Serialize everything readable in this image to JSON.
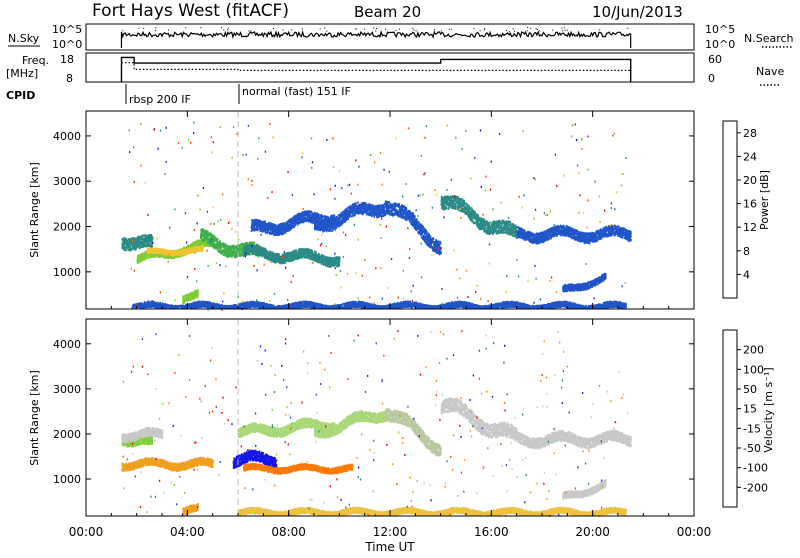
{
  "header": {
    "station": "Fort Hays West (fitACF)",
    "beam": "Beam 20",
    "date": "10/Jun/2013"
  },
  "params": {
    "nsky_label": "N.Sky",
    "nsky_top": "10^5",
    "nsky_bottom": "10^0",
    "nsky_right_top": "10^5",
    "nsky_right_bottom": "10^0",
    "nsearch_label": "N.Search",
    "freq_label": "Freq.",
    "freq_unit": "[MHz]",
    "freq_top": "18",
    "freq_bottom": "8",
    "nave_top": "60",
    "nave_bottom": "0",
    "nave_label": "Nave",
    "cpid_label": "CPID",
    "cpid_segments": [
      {
        "label": "rbsp 200 IF",
        "start_hr": 1.4
      },
      {
        "label": "normal (fast) 151 IF",
        "start_hr": 6.0
      }
    ],
    "freq_steps": [
      {
        "t0": 1.4,
        "t1": 1.9,
        "mhz": 16.5
      },
      {
        "t0": 1.9,
        "t1": 6.0,
        "mhz": 14.5
      },
      {
        "t0": 6.0,
        "t1": 14.0,
        "mhz": 14.5
      },
      {
        "t0": 14.0,
        "t1": 21.5,
        "mhz": 15.8
      }
    ],
    "nave_steps": [
      {
        "t0": 1.4,
        "t1": 1.9,
        "nave": 40
      },
      {
        "t0": 1.9,
        "t1": 6.0,
        "nave": 26
      },
      {
        "t0": 6.0,
        "t1": 21.5,
        "nave": 24
      }
    ]
  },
  "chart_data": [
    {
      "type": "heatmap",
      "name": "Power",
      "ylabel": "Slant Range [km]",
      "yticks": [
        "1000",
        "2000",
        "3000",
        "4000"
      ],
      "ylim": [
        180,
        4550
      ],
      "xlim": [
        0,
        24
      ],
      "colorbar_label": "Power [dB]",
      "colorbar_ticks": [
        "4",
        "8",
        "12",
        "16",
        "20",
        "24",
        "28"
      ],
      "colorbar_colors": [
        "#1515e6",
        "#1f55c8",
        "#2b8a86",
        "#3fae4c",
        "#7fcc36",
        "#f0c430",
        "#ff9800",
        "#ff6a00",
        "#ff3a00",
        "#e60000"
      ],
      "bands": [
        {
          "t0": 1.4,
          "t1": 2.6,
          "r0": 1750,
          "r1": 1600,
          "w": 260,
          "c": "#2b8a86"
        },
        {
          "t0": 2.0,
          "t1": 5.0,
          "r0": 1300,
          "r1": 1650,
          "w": 160,
          "c": "#7fcc36"
        },
        {
          "t0": 2.4,
          "t1": 4.6,
          "r0": 1450,
          "r1": 1500,
          "w": 100,
          "c": "#f0c430"
        },
        {
          "t0": 4.5,
          "t1": 6.8,
          "r0": 1750,
          "r1": 1400,
          "w": 260,
          "c": "#3fae4c"
        },
        {
          "t0": 6.2,
          "t1": 10.0,
          "r0": 1450,
          "r1": 1300,
          "w": 200,
          "c": "#2b8a86"
        },
        {
          "t0": 6.5,
          "t1": 9.8,
          "r0": 1950,
          "r1": 2250,
          "w": 240,
          "c": "#1f55c8"
        },
        {
          "t0": 9.0,
          "t1": 11.8,
          "r0": 2050,
          "r1": 2500,
          "w": 260,
          "c": "#1f55c8"
        },
        {
          "t0": 11.8,
          "t1": 14.0,
          "r0": 2550,
          "r1": 1600,
          "w": 280,
          "c": "#1f55c8"
        },
        {
          "t0": 14.0,
          "t1": 17.0,
          "r0": 2600,
          "r1": 1800,
          "w": 280,
          "c": "#2b8a86"
        },
        {
          "t0": 17.0,
          "t1": 21.5,
          "r0": 1850,
          "r1": 1850,
          "w": 220,
          "c": "#1f55c8"
        },
        {
          "t0": 18.8,
          "t1": 20.5,
          "r0": 600,
          "r1": 900,
          "w": 140,
          "c": "#1f55c8"
        },
        {
          "t0": 3.8,
          "t1": 4.4,
          "r0": 450,
          "r1": 500,
          "w": 150,
          "c": "#7fcc36"
        },
        {
          "t0": 1.8,
          "t1": 21.3,
          "r0": 260,
          "r1": 260,
          "w": 120,
          "c": "#1f55c8"
        }
      ]
    },
    {
      "type": "heatmap",
      "name": "Velocity",
      "ylabel": "Slant Range [km]",
      "yticks": [
        "1000",
        "2000",
        "3000",
        "4000"
      ],
      "ylim": [
        180,
        4550
      ],
      "xlim": [
        0,
        24
      ],
      "xlabel": "Time UT",
      "xticks": [
        "00:00",
        "04:00",
        "08:00",
        "12:00",
        "16:00",
        "20:00",
        "00:00"
      ],
      "colorbar_label": "Velocity [m s⁻¹]",
      "colorbar_ticks": [
        "200",
        "100",
        "50",
        "15",
        "-15",
        "-50",
        "-100",
        "-200"
      ],
      "colorbar_colors": [
        "#1515e6",
        "#2a50b8",
        "#2e8a4a",
        "#7fd13a",
        "#c8c8c8",
        "#c8c8c8",
        "#f0a020",
        "#ff7a00",
        "#ff4000",
        "#e60000"
      ],
      "bands": [
        {
          "t0": 1.4,
          "t1": 2.6,
          "r0": 1950,
          "r1": 1800,
          "w": 200,
          "c": "#7fd13a"
        },
        {
          "t0": 1.4,
          "t1": 5.0,
          "r0": 1350,
          "r1": 1350,
          "w": 160,
          "c": "#f0a020"
        },
        {
          "t0": 1.4,
          "t1": 3.0,
          "r0": 2000,
          "r1": 2000,
          "w": 180,
          "c": "#c8c8c8"
        },
        {
          "t0": 5.8,
          "t1": 7.5,
          "r0": 1450,
          "r1": 1450,
          "w": 230,
          "c": "#1515e6"
        },
        {
          "t0": 6.2,
          "t1": 10.5,
          "r0": 1250,
          "r1": 1250,
          "w": 120,
          "c": "#ff7a00"
        },
        {
          "t0": 6.0,
          "t1": 9.8,
          "r0": 2050,
          "r1": 2250,
          "w": 200,
          "c": "#a8d878"
        },
        {
          "t0": 9.0,
          "t1": 11.8,
          "r0": 2050,
          "r1": 2500,
          "w": 220,
          "c": "#a8d878"
        },
        {
          "t0": 11.8,
          "t1": 14.0,
          "r0": 2550,
          "r1": 1700,
          "w": 260,
          "c": "#b8c8a0"
        },
        {
          "t0": 14.0,
          "t1": 17.0,
          "r0": 2700,
          "r1": 1900,
          "w": 300,
          "c": "#c8c8c8"
        },
        {
          "t0": 17.0,
          "t1": 21.5,
          "r0": 1900,
          "r1": 1900,
          "w": 220,
          "c": "#c8c8c8"
        },
        {
          "t0": 18.8,
          "t1": 20.5,
          "r0": 600,
          "r1": 900,
          "w": 140,
          "c": "#c8c8c8"
        },
        {
          "t0": 3.8,
          "t1": 4.4,
          "r0": 350,
          "r1": 350,
          "w": 150,
          "c": "#f0a020"
        },
        {
          "t0": 6.0,
          "t1": 21.3,
          "r0": 280,
          "r1": 280,
          "w": 120,
          "c": "#f0c040"
        }
      ]
    }
  ]
}
